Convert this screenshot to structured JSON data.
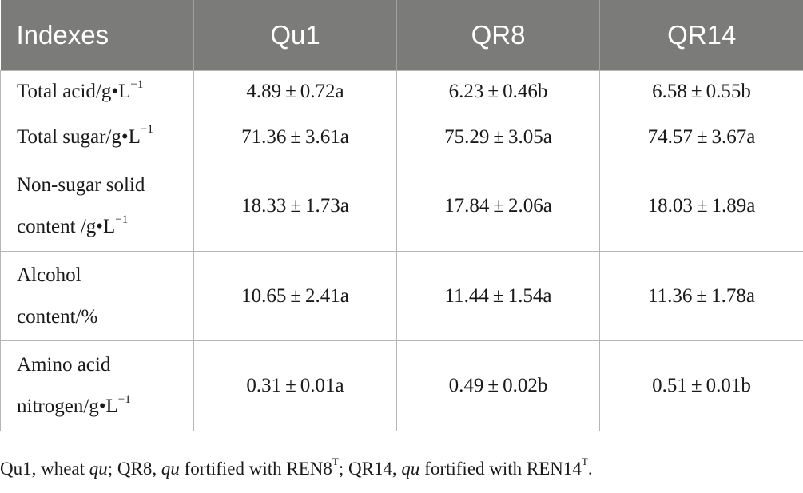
{
  "table": {
    "headers": [
      "Indexes",
      "Qu1",
      "QR8",
      "QR14"
    ],
    "rows": [
      {
        "label_lines": [
          "Total acid/g•L"
        ],
        "label_sup": "−1",
        "values": [
          "4.89 ± 0.72a",
          "6.23 ± 0.46b",
          "6.58 ± 0.55b"
        ]
      },
      {
        "label_lines": [
          "Total sugar/g•L"
        ],
        "label_sup": "−1",
        "values": [
          "71.36 ± 3.61a",
          "75.29 ± 3.05a",
          "74.57 ± 3.67a"
        ]
      },
      {
        "label_lines": [
          "Non-sugar solid",
          "content /g•L"
        ],
        "label_sup": "−1",
        "values": [
          "18.33 ± 1.73a",
          "17.84 ± 2.06a",
          "18.03 ± 1.89a"
        ]
      },
      {
        "label_lines": [
          "Alcohol",
          "content/%"
        ],
        "label_sup": "",
        "values": [
          "10.65 ± 2.41a",
          "11.44 ± 1.54a",
          "11.36 ± 1.78a"
        ]
      },
      {
        "label_lines": [
          "Amino acid",
          "nitrogen/g•L"
        ],
        "label_sup": "−1",
        "values": [
          "0.31 ± 0.01a",
          "0.49 ± 0.02b",
          "0.51 ± 0.01b"
        ]
      }
    ]
  },
  "footnote": {
    "p1": "Qu1, wheat ",
    "i1": "qu",
    "p2": "; QR8, ",
    "i2": "qu",
    "p3": " fortified with REN8",
    "s1": "T",
    "p4": "; QR14, ",
    "i3": "qu",
    "p5": " fortified with REN14",
    "s2": "T",
    "p6": "."
  },
  "colors": {
    "header_bg": "#7b7b7a",
    "header_text": "#ffffff",
    "grid_line": "#b5b5b5"
  }
}
